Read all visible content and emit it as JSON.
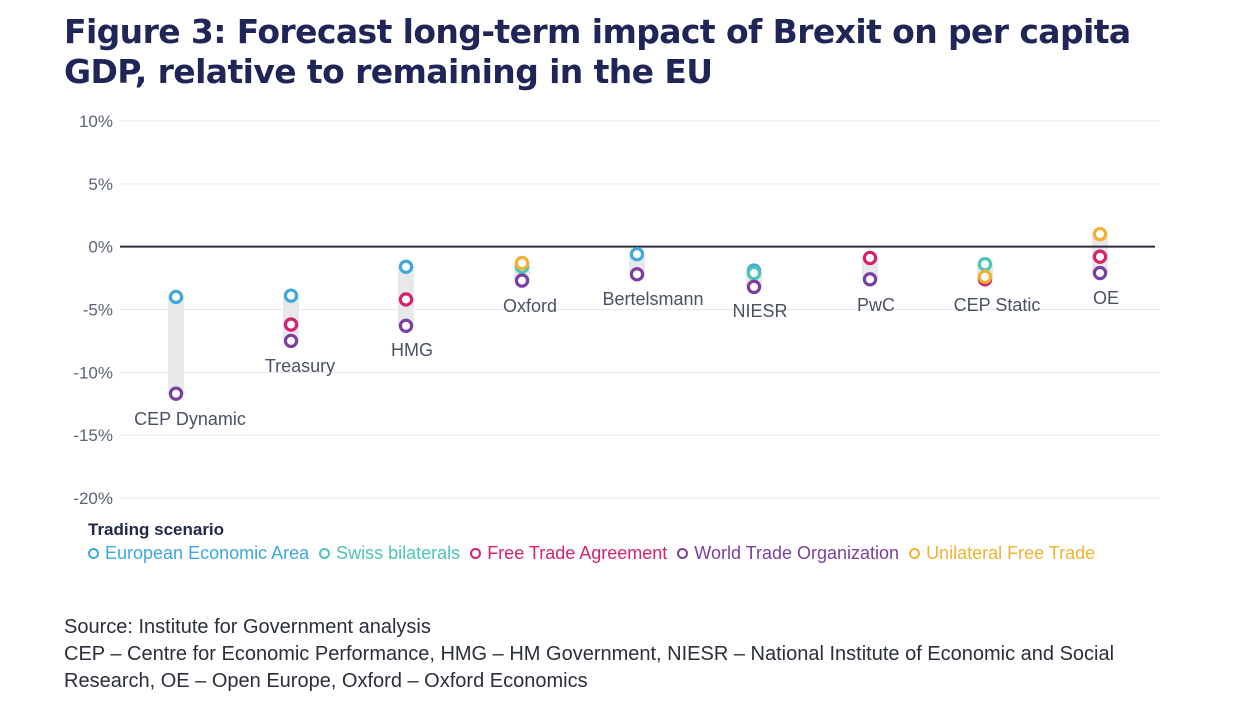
{
  "title": "Figure 3: Forecast long-term impact of Brexit on per capita GDP, relative to remaining in the EU",
  "chart_data": {
    "type": "scatter",
    "title": "Figure 3: Forecast long-term impact of Brexit on per capita GDP, relative to remaining in the EU",
    "xlabel": "",
    "ylabel": "",
    "ylim": [
      -20,
      10
    ],
    "yticks": [
      "10%",
      "5%",
      "0%",
      "-5%",
      "-10%",
      "-15%",
      "-20%"
    ],
    "ytick_values": [
      10,
      5,
      0,
      -5,
      -10,
      -15,
      -20
    ],
    "grid": true,
    "legend_title": "Trading scenario",
    "legend_position": "bottom",
    "categories": [
      "CEP Dynamic",
      "Treasury",
      "HMG",
      "Oxford",
      "Bertelsmann",
      "NIESR",
      "PwC",
      "CEP Static",
      "OE"
    ],
    "series": [
      {
        "name": "European Economic Area",
        "color": "#3ea8dc",
        "values": [
          -4.0,
          -3.9,
          -1.6,
          null,
          -0.6,
          -1.9,
          null,
          null,
          null
        ]
      },
      {
        "name": "Swiss bilaterals",
        "color": "#4dc5b8",
        "values": [
          null,
          null,
          null,
          -1.6,
          null,
          -2.1,
          null,
          -1.4,
          null
        ]
      },
      {
        "name": "Free Trade Agreement",
        "color": "#d4226e",
        "values": [
          null,
          -6.2,
          -4.2,
          null,
          null,
          null,
          -0.9,
          -2.6,
          -0.8
        ]
      },
      {
        "name": "World Trade Organization",
        "color": "#7b3fa0",
        "values": [
          -11.7,
          -7.5,
          -6.3,
          -2.7,
          -2.2,
          -3.2,
          -2.6,
          null,
          -2.1
        ]
      },
      {
        "name": "Unilateral Free Trade",
        "color": "#f2b134",
        "values": [
          null,
          null,
          null,
          -1.3,
          null,
          null,
          null,
          -2.4,
          1.0
        ]
      }
    ]
  },
  "legend": {
    "title": "Trading scenario"
  },
  "notes": {
    "source": "Source: Institute for Government analysis",
    "line1": "CEP – Centre for Economic Performance, HMG – HM Government, NIESR – National Institute of Economic and Social",
    "line2": "Research, OE – Open Europe, Oxford – Oxford Economics"
  }
}
